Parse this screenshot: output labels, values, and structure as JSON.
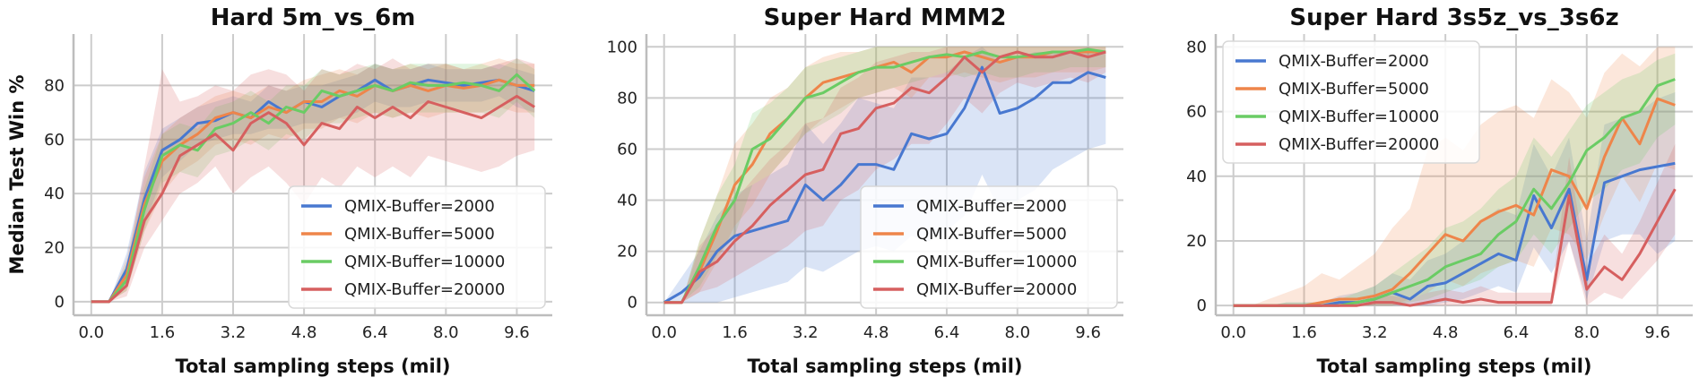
{
  "chart_data": [
    {
      "type": "line",
      "title": "Hard 5m_vs_6m",
      "xlabel": "Total sampling steps (mil)",
      "ylabel": "Median Test Win %",
      "xlim": [
        -0.4,
        10.4
      ],
      "ylim": [
        -5,
        99
      ],
      "xticks": [
        "0.0",
        "1.6",
        "3.2",
        "4.8",
        "6.4",
        "8.0",
        "9.6"
      ],
      "yticks": [
        0,
        20,
        40,
        60,
        80
      ],
      "grid": true,
      "legend_position": "lower-right",
      "x": [
        0.0,
        0.4,
        0.8,
        1.2,
        1.6,
        2.0,
        2.4,
        2.8,
        3.2,
        3.6,
        4.0,
        4.4,
        4.8,
        5.2,
        5.6,
        6.0,
        6.4,
        6.8,
        7.2,
        7.6,
        8.0,
        8.4,
        8.8,
        9.2,
        9.6,
        10.0
      ],
      "series": [
        {
          "name": "QMIX-Buffer=2000",
          "color": "#4878d0",
          "values": [
            0,
            0,
            12,
            38,
            56,
            60,
            66,
            67,
            70,
            68,
            74,
            70,
            74,
            72,
            76,
            78,
            82,
            78,
            80,
            82,
            81,
            80,
            81,
            82,
            80,
            78
          ],
          "lower": [
            0,
            0,
            6,
            28,
            46,
            52,
            58,
            60,
            62,
            62,
            64,
            64,
            66,
            66,
            68,
            70,
            74,
            72,
            72,
            74,
            74,
            74,
            74,
            76,
            72,
            70
          ],
          "upper": [
            0,
            0,
            18,
            48,
            64,
            68,
            72,
            74,
            76,
            74,
            80,
            78,
            80,
            80,
            82,
            84,
            88,
            86,
            86,
            88,
            86,
            86,
            86,
            88,
            86,
            84
          ]
        },
        {
          "name": "QMIX-Buffer=5000",
          "color": "#ee854a",
          "values": [
            0,
            0,
            10,
            36,
            52,
            58,
            62,
            68,
            70,
            68,
            72,
            70,
            74,
            74,
            78,
            76,
            80,
            78,
            80,
            78,
            80,
            79,
            80,
            82,
            80,
            80
          ],
          "lower": [
            0,
            0,
            4,
            26,
            40,
            48,
            52,
            58,
            60,
            58,
            62,
            60,
            64,
            64,
            68,
            66,
            70,
            68,
            70,
            68,
            70,
            70,
            70,
            72,
            70,
            70
          ],
          "upper": [
            0,
            0,
            16,
            46,
            62,
            68,
            72,
            76,
            78,
            76,
            80,
            78,
            82,
            84,
            86,
            84,
            88,
            86,
            88,
            86,
            88,
            86,
            88,
            90,
            88,
            88
          ]
        },
        {
          "name": "QMIX-Buffer=10000",
          "color": "#6acc64",
          "values": [
            0,
            0,
            8,
            34,
            54,
            58,
            56,
            64,
            66,
            70,
            66,
            72,
            70,
            78,
            76,
            78,
            80,
            78,
            81,
            80,
            80,
            81,
            80,
            78,
            84,
            78
          ],
          "lower": [
            0,
            0,
            4,
            26,
            44,
            48,
            46,
            54,
            56,
            60,
            56,
            62,
            60,
            66,
            66,
            68,
            70,
            68,
            70,
            70,
            70,
            70,
            70,
            68,
            74,
            68
          ],
          "upper": [
            0,
            0,
            14,
            42,
            62,
            66,
            64,
            72,
            74,
            78,
            74,
            80,
            80,
            86,
            84,
            86,
            88,
            86,
            88,
            88,
            88,
            88,
            88,
            86,
            90,
            86
          ]
        },
        {
          "name": "QMIX-Buffer=20000",
          "color": "#d65f5f",
          "values": [
            0,
            0,
            6,
            30,
            40,
            54,
            58,
            62,
            56,
            66,
            70,
            66,
            58,
            66,
            64,
            72,
            68,
            72,
            68,
            74,
            72,
            70,
            68,
            72,
            76,
            72
          ],
          "lower": [
            0,
            0,
            2,
            20,
            30,
            40,
            44,
            50,
            40,
            46,
            50,
            44,
            36,
            46,
            42,
            50,
            46,
            50,
            46,
            54,
            52,
            50,
            48,
            50,
            54,
            56
          ],
          "upper": [
            0,
            0,
            12,
            50,
            86,
            74,
            76,
            80,
            78,
            84,
            86,
            84,
            78,
            86,
            84,
            88,
            86,
            90,
            86,
            88,
            88,
            86,
            86,
            88,
            90,
            88
          ]
        }
      ]
    },
    {
      "type": "line",
      "title": "Super Hard MMM2",
      "xlabel": "Total sampling steps (mil)",
      "ylabel": "",
      "xlim": [
        -0.4,
        10.4
      ],
      "ylim": [
        -5,
        105
      ],
      "xticks": [
        "0.0",
        "1.6",
        "3.2",
        "4.8",
        "6.4",
        "8.0",
        "9.6"
      ],
      "yticks": [
        0,
        20,
        40,
        60,
        80,
        100
      ],
      "grid": true,
      "legend_position": "lower-right",
      "x": [
        0.0,
        0.4,
        0.8,
        1.2,
        1.6,
        2.0,
        2.4,
        2.8,
        3.2,
        3.6,
        4.0,
        4.4,
        4.8,
        5.2,
        5.6,
        6.0,
        6.4,
        6.8,
        7.2,
        7.6,
        8.0,
        8.4,
        8.8,
        9.2,
        9.6,
        10.0
      ],
      "series": [
        {
          "name": "QMIX-Buffer=2000",
          "color": "#4878d0",
          "values": [
            0,
            4,
            10,
            20,
            26,
            28,
            30,
            32,
            46,
            40,
            46,
            54,
            54,
            52,
            66,
            64,
            66,
            76,
            92,
            74,
            76,
            80,
            86,
            86,
            90,
            88
          ],
          "lower": [
            0,
            0,
            0,
            0,
            2,
            4,
            6,
            8,
            14,
            12,
            16,
            20,
            22,
            20,
            26,
            24,
            28,
            34,
            50,
            36,
            40,
            44,
            52,
            56,
            60,
            62
          ],
          "upper": [
            0,
            10,
            20,
            34,
            42,
            46,
            50,
            54,
            70,
            62,
            70,
            80,
            78,
            76,
            88,
            88,
            90,
            96,
            100,
            94,
            96,
            98,
            98,
            98,
            100,
            98
          ]
        },
        {
          "name": "QMIX-Buffer=5000",
          "color": "#ee854a",
          "values": [
            0,
            0,
            12,
            28,
            46,
            54,
            66,
            72,
            80,
            86,
            88,
            90,
            92,
            94,
            90,
            96,
            96,
            98,
            96,
            94,
            96,
            96,
            98,
            98,
            98,
            98
          ],
          "lower": [
            0,
            0,
            4,
            16,
            30,
            38,
            50,
            58,
            66,
            72,
            76,
            80,
            82,
            84,
            80,
            88,
            88,
            90,
            88,
            86,
            88,
            88,
            90,
            90,
            90,
            92
          ],
          "upper": [
            0,
            0,
            24,
            42,
            62,
            70,
            80,
            84,
            92,
            96,
            98,
            98,
            100,
            100,
            100,
            100,
            100,
            100,
            100,
            100,
            100,
            100,
            100,
            100,
            100,
            100
          ]
        },
        {
          "name": "QMIX-Buffer=10000",
          "color": "#6acc64",
          "values": [
            0,
            0,
            14,
            30,
            40,
            60,
            64,
            72,
            80,
            82,
            86,
            90,
            92,
            92,
            94,
            96,
            97,
            96,
            98,
            96,
            96,
            97,
            98,
            98,
            99,
            98
          ],
          "lower": [
            0,
            0,
            6,
            18,
            26,
            46,
            50,
            58,
            66,
            70,
            74,
            80,
            82,
            84,
            86,
            88,
            90,
            88,
            90,
            88,
            88,
            90,
            90,
            92,
            92,
            92
          ],
          "upper": [
            0,
            0,
            24,
            42,
            54,
            74,
            78,
            84,
            92,
            94,
            96,
            98,
            100,
            100,
            100,
            100,
            100,
            100,
            100,
            100,
            100,
            100,
            100,
            100,
            100,
            100
          ]
        },
        {
          "name": "QMIX-Buffer=20000",
          "color": "#d65f5f",
          "values": [
            0,
            0,
            12,
            16,
            24,
            30,
            38,
            44,
            50,
            52,
            66,
            68,
            76,
            78,
            84,
            82,
            88,
            96,
            90,
            96,
            98,
            96,
            96,
            98,
            96,
            98
          ],
          "lower": [
            0,
            0,
            4,
            6,
            10,
            14,
            18,
            22,
            28,
            30,
            40,
            44,
            52,
            56,
            62,
            62,
            70,
            80,
            74,
            82,
            86,
            84,
            86,
            88,
            86,
            90
          ],
          "upper": [
            0,
            0,
            22,
            30,
            40,
            48,
            56,
            62,
            70,
            72,
            84,
            88,
            94,
            96,
            98,
            98,
            100,
            100,
            100,
            100,
            100,
            100,
            100,
            100,
            100,
            100
          ]
        }
      ]
    },
    {
      "type": "line",
      "title": "Super Hard 3s5z_vs_3s6z",
      "xlabel": "Total sampling steps (mil)",
      "ylabel": "",
      "xlim": [
        -0.4,
        10.4
      ],
      "ylim": [
        -3,
        84
      ],
      "xticks": [
        "0.0",
        "1.6",
        "3.2",
        "4.8",
        "6.4",
        "8.0",
        "9.6"
      ],
      "yticks": [
        0,
        20,
        40,
        60,
        80
      ],
      "grid": true,
      "legend_position": "upper-left",
      "x": [
        0.0,
        0.4,
        0.8,
        1.2,
        1.6,
        2.0,
        2.4,
        2.8,
        3.2,
        3.6,
        4.0,
        4.4,
        4.8,
        5.2,
        5.6,
        6.0,
        6.4,
        6.8,
        7.2,
        7.6,
        8.0,
        8.4,
        8.8,
        9.2,
        9.6,
        10.0
      ],
      "series": [
        {
          "name": "QMIX-Buffer=2000",
          "color": "#4878d0",
          "values": [
            0,
            0,
            0,
            0,
            0,
            0,
            1,
            1,
            2,
            4,
            2,
            6,
            7,
            10,
            13,
            16,
            14,
            34,
            24,
            36,
            8,
            38,
            40,
            42,
            43,
            44
          ],
          "lower": [
            0,
            0,
            0,
            0,
            0,
            0,
            0,
            0,
            0,
            0,
            0,
            0,
            1,
            2,
            4,
            6,
            4,
            18,
            10,
            20,
            2,
            20,
            22,
            22,
            16,
            20
          ],
          "upper": [
            0,
            0,
            0,
            1,
            1,
            1,
            3,
            4,
            6,
            10,
            8,
            14,
            16,
            20,
            26,
            30,
            28,
            50,
            40,
            52,
            20,
            56,
            58,
            60,
            64,
            66
          ]
        },
        {
          "name": "QMIX-Buffer=5000",
          "color": "#ee854a",
          "values": [
            0,
            0,
            0,
            0,
            0,
            1,
            2,
            2,
            3,
            5,
            10,
            16,
            22,
            20,
            26,
            29,
            31,
            28,
            42,
            40,
            30,
            46,
            58,
            50,
            64,
            62
          ],
          "lower": [
            0,
            0,
            0,
            0,
            0,
            0,
            0,
            0,
            0,
            0,
            2,
            4,
            8,
            6,
            10,
            12,
            14,
            12,
            24,
            22,
            14,
            28,
            40,
            32,
            44,
            42
          ],
          "upper": [
            0,
            0,
            2,
            4,
            6,
            10,
            8,
            12,
            16,
            24,
            30,
            48,
            52,
            48,
            56,
            60,
            62,
            58,
            70,
            66,
            58,
            72,
            78,
            74,
            80,
            80
          ]
        },
        {
          "name": "QMIX-Buffer=10000",
          "color": "#6acc64",
          "values": [
            0,
            0,
            0,
            0,
            0,
            0,
            0,
            1,
            2,
            4,
            6,
            8,
            12,
            14,
            16,
            22,
            26,
            36,
            30,
            38,
            48,
            52,
            58,
            60,
            68,
            70
          ],
          "lower": [
            0,
            0,
            0,
            0,
            0,
            0,
            0,
            0,
            0,
            0,
            1,
            2,
            4,
            6,
            8,
            12,
            14,
            22,
            16,
            24,
            32,
            36,
            42,
            44,
            52,
            56
          ],
          "upper": [
            0,
            0,
            0,
            1,
            1,
            1,
            2,
            4,
            6,
            10,
            14,
            18,
            24,
            26,
            30,
            36,
            40,
            52,
            46,
            54,
            62,
            66,
            70,
            72,
            76,
            78
          ]
        },
        {
          "name": "QMIX-Buffer=20000",
          "color": "#d65f5f",
          "values": [
            0,
            0,
            0,
            0,
            0,
            0,
            0,
            0,
            1,
            1,
            0,
            1,
            2,
            1,
            2,
            1,
            1,
            1,
            1,
            34,
            5,
            12,
            8,
            16,
            26,
            36
          ],
          "lower": [
            0,
            0,
            0,
            0,
            0,
            0,
            0,
            0,
            0,
            0,
            0,
            0,
            0,
            0,
            0,
            0,
            0,
            0,
            0,
            20,
            0,
            4,
            2,
            8,
            14,
            22
          ],
          "upper": [
            0,
            0,
            0,
            0,
            0,
            0,
            1,
            1,
            3,
            3,
            2,
            4,
            5,
            4,
            6,
            4,
            4,
            4,
            4,
            46,
            12,
            22,
            16,
            26,
            38,
            50
          ]
        }
      ]
    }
  ]
}
